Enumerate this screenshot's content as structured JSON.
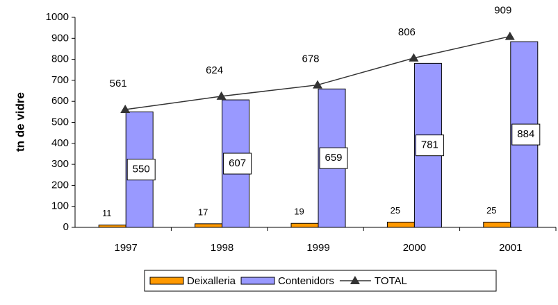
{
  "chart_data": {
    "type": "bar",
    "y_label": "tn de vidre",
    "categories": [
      "1997",
      "1998",
      "1999",
      "2000",
      "2001"
    ],
    "series": [
      {
        "name": "Deixalleria",
        "type": "bar",
        "color": "#ff9900",
        "values": [
          11,
          17,
          19,
          25,
          25
        ]
      },
      {
        "name": "Contenidors",
        "type": "bar",
        "color": "#9999ff",
        "values": [
          550,
          607,
          659,
          781,
          884
        ]
      },
      {
        "name": "TOTAL",
        "type": "line",
        "color": "#333333",
        "values": [
          561,
          624,
          678,
          806,
          909
        ]
      }
    ],
    "ylim": [
      0,
      1000
    ],
    "yticks": [
      0,
      100,
      200,
      300,
      400,
      500,
      600,
      700,
      800,
      900,
      1000
    ],
    "grid": false,
    "legend": "bottom"
  }
}
